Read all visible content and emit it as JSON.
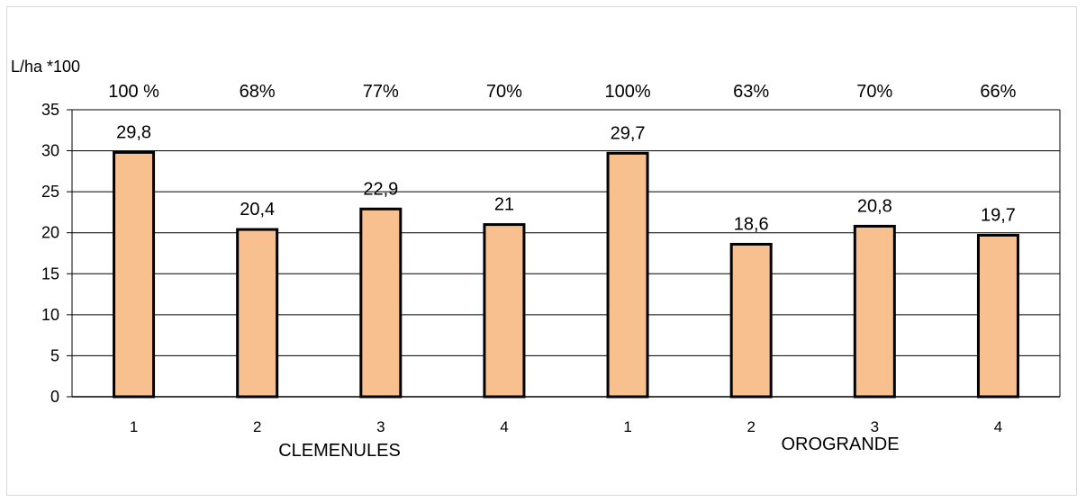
{
  "chart_data": {
    "type": "bar",
    "ylabel": "L/ha *100",
    "ylim": [
      0,
      35
    ],
    "yticks": [
      0,
      5,
      10,
      15,
      20,
      25,
      30,
      35
    ],
    "grid": true,
    "categories": [
      "1",
      "2",
      "3",
      "4",
      "1",
      "2",
      "3",
      "4"
    ],
    "values": [
      29.8,
      20.4,
      22.9,
      21,
      29.7,
      18.6,
      20.8,
      19.7
    ],
    "value_labels": [
      "29,8",
      "20,4",
      "22,9",
      "21",
      "29,7",
      "18,6",
      "20,8",
      "19,7"
    ],
    "percent_labels": [
      "100 %",
      "68%",
      "77%",
      "70%",
      "100%",
      "63%",
      "70%",
      "66%"
    ],
    "groups": [
      {
        "label": "CLEMENULES",
        "categories": [
          "1",
          "2",
          "3",
          "4"
        ]
      },
      {
        "label": "OROGRANDE",
        "categories": [
          "1",
          "2",
          "3",
          "4"
        ]
      }
    ],
    "bar_color": "#f8bf8f",
    "bar_edge_color": "#000000"
  }
}
